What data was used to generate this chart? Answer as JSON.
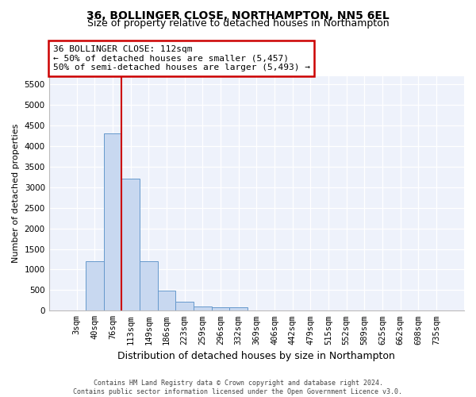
{
  "title": "36, BOLLINGER CLOSE, NORTHAMPTON, NN5 6EL",
  "subtitle": "Size of property relative to detached houses in Northampton",
  "xlabel": "Distribution of detached houses by size in Northampton",
  "ylabel": "Number of detached properties",
  "categories": [
    "3sqm",
    "40sqm",
    "76sqm",
    "113sqm",
    "149sqm",
    "186sqm",
    "223sqm",
    "259sqm",
    "296sqm",
    "332sqm",
    "369sqm",
    "406sqm",
    "442sqm",
    "479sqm",
    "515sqm",
    "552sqm",
    "589sqm",
    "625sqm",
    "662sqm",
    "698sqm",
    "735sqm"
  ],
  "values": [
    0,
    1200,
    4300,
    3200,
    1200,
    480,
    220,
    100,
    80,
    80,
    0,
    0,
    0,
    0,
    0,
    0,
    0,
    0,
    0,
    0,
    0
  ],
  "bar_color": "#c8d8f0",
  "bar_edge_color": "#6699cc",
  "vline_color": "#cc0000",
  "vline_pos": 2.5,
  "ylim_max": 5700,
  "yticks": [
    0,
    500,
    1000,
    1500,
    2000,
    2500,
    3000,
    3500,
    4000,
    4500,
    5000,
    5500
  ],
  "annotation_line1": "36 BOLLINGER CLOSE: 112sqm",
  "annotation_line2": "← 50% of detached houses are smaller (5,457)",
  "annotation_line3": "50% of semi-detached houses are larger (5,493) →",
  "footer": "Contains HM Land Registry data © Crown copyright and database right 2024.\nContains public sector information licensed under the Open Government Licence v3.0.",
  "bg_color": "#eef2fb",
  "grid_color": "#ffffff",
  "title_fontsize": 10,
  "subtitle_fontsize": 9,
  "ylabel_fontsize": 8,
  "xlabel_fontsize": 9,
  "tick_fontsize": 7.5,
  "ann_fontsize": 8,
  "footer_fontsize": 6
}
